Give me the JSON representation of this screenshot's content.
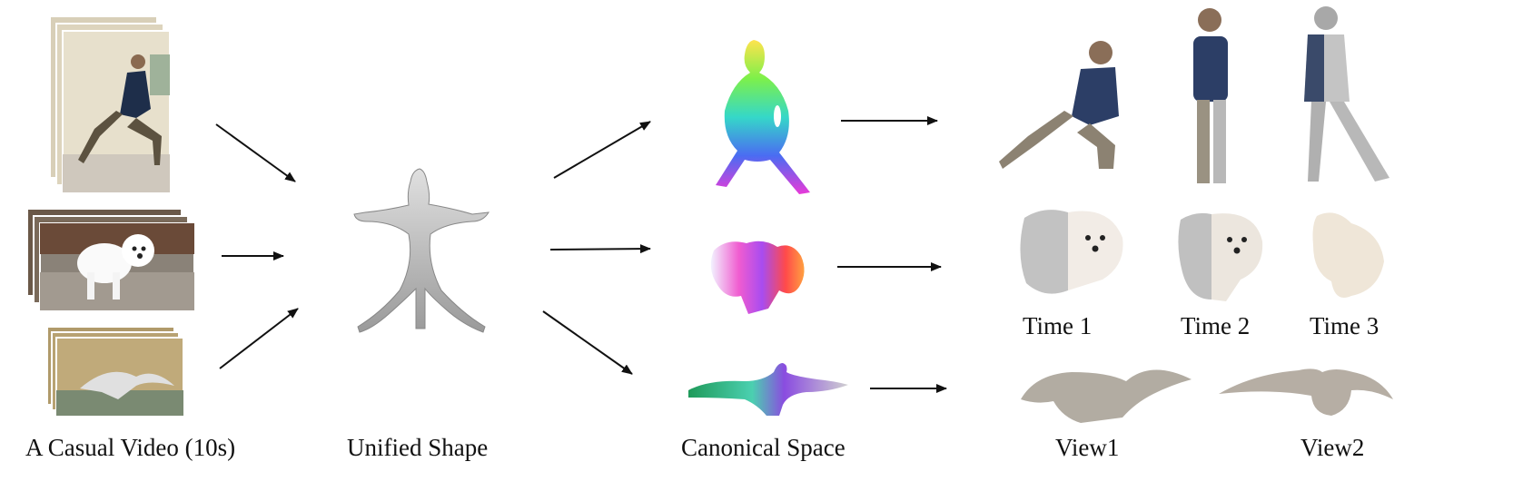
{
  "labels": {
    "input": "A Casual Video (10s)",
    "unified": "Unified Shape",
    "canonical": "Canonical Space",
    "time1": "Time 1",
    "time2": "Time 2",
    "time3": "Time 3",
    "view1": "View1",
    "view2": "View2"
  },
  "colors": {
    "arrow": "#111111",
    "mesh_gray": "#c8c8c8",
    "background": "#ffffff"
  }
}
